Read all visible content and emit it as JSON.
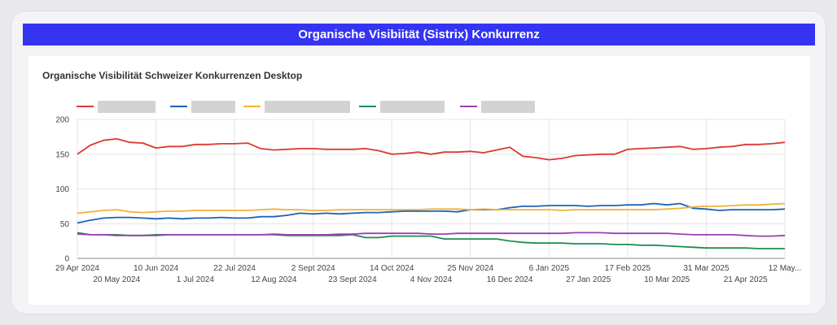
{
  "banner": {
    "title": "Organische Visibiität (Sistrix) Konkurrenz"
  },
  "panel": {
    "title": "Organische Visibilität Schweizer Konkurrenzen Desktop"
  },
  "chart_data": {
    "type": "line",
    "title": "Organische Visibilität Schweizer Konkurrenzen Desktop",
    "xlabel": "",
    "ylabel": "",
    "ylim": [
      0,
      200
    ],
    "yticks": [
      0,
      50,
      100,
      150,
      200
    ],
    "grid": true,
    "legend_position": "top-left",
    "legend_labels_redacted": true,
    "x": [
      "2024-04-29",
      "2024-05-06",
      "2024-05-13",
      "2024-05-20",
      "2024-05-27",
      "2024-06-03",
      "2024-06-10",
      "2024-06-17",
      "2024-06-24",
      "2024-07-01",
      "2024-07-08",
      "2024-07-15",
      "2024-07-22",
      "2024-07-29",
      "2024-08-05",
      "2024-08-12",
      "2024-08-19",
      "2024-08-26",
      "2024-09-02",
      "2024-09-09",
      "2024-09-16",
      "2024-09-23",
      "2024-09-30",
      "2024-10-07",
      "2024-10-14",
      "2024-10-21",
      "2024-10-28",
      "2024-11-04",
      "2024-11-11",
      "2024-11-18",
      "2024-11-25",
      "2024-12-02",
      "2024-12-09",
      "2024-12-16",
      "2024-12-23",
      "2024-12-30",
      "2025-01-06",
      "2025-01-13",
      "2025-01-20",
      "2025-01-27",
      "2025-02-03",
      "2025-02-10",
      "2025-02-17",
      "2025-02-24",
      "2025-03-03",
      "2025-03-10",
      "2025-03-17",
      "2025-03-24",
      "2025-03-31",
      "2025-04-07",
      "2025-04-14",
      "2025-04-21",
      "2025-04-28",
      "2025-05-05",
      "2025-05-12"
    ],
    "x_ticks_top": [
      "29 Apr 2024",
      "10 Jun 2024",
      "22 Jul 2024",
      "2 Sept 2024",
      "14 Oct 2024",
      "25 Nov 2024",
      "6 Jan 2025",
      "17 Feb 2025",
      "31 Mar 2025",
      "12 May..."
    ],
    "x_ticks_bottom": [
      "20 May 2024",
      "1 Jul 2024",
      "12 Aug 2024",
      "23 Sept 2024",
      "4 Nov 2024",
      "16 Dec 2024",
      "27 Jan 2025",
      "10 Mar 2025",
      "21 Apr 2025"
    ],
    "series": [
      {
        "color": "#d93a32",
        "values": [
          150,
          163,
          170,
          172,
          167,
          166,
          159,
          161,
          161,
          164,
          164,
          165,
          165,
          166,
          158,
          156,
          157,
          158,
          158,
          157,
          157,
          157,
          158,
          155,
          150,
          151,
          153,
          150,
          153,
          153,
          154,
          152,
          156,
          160,
          147,
          145,
          142,
          144,
          148,
          149,
          150,
          150,
          157,
          158,
          159,
          160,
          161,
          157,
          158,
          160,
          161,
          164,
          164,
          165,
          167
        ]
      },
      {
        "color": "#1a63b6",
        "values": [
          51,
          55,
          58,
          59,
          59,
          58,
          57,
          58,
          57,
          58,
          58,
          59,
          58,
          58,
          60,
          60,
          62,
          65,
          64,
          65,
          64,
          65,
          66,
          66,
          67,
          68,
          68,
          68,
          68,
          67,
          70,
          70,
          70,
          73,
          75,
          75,
          76,
          76,
          76,
          75,
          76,
          76,
          77,
          77,
          79,
          77,
          79,
          72,
          71,
          69,
          70,
          70,
          70,
          70,
          71
        ]
      },
      {
        "color": "#f2b13b",
        "values": [
          65,
          67,
          69,
          70,
          67,
          66,
          67,
          68,
          68,
          69,
          69,
          69,
          69,
          69,
          70,
          71,
          70,
          70,
          69,
          69,
          70,
          70,
          70,
          70,
          70,
          70,
          70,
          71,
          71,
          71,
          70,
          71,
          70,
          70,
          70,
          70,
          70,
          69,
          70,
          70,
          70,
          70,
          70,
          70,
          70,
          71,
          72,
          74,
          75,
          75,
          76,
          77,
          77,
          78,
          79
        ]
      },
      {
        "color": "#1e8d50",
        "values": [
          37,
          34,
          34,
          34,
          33,
          33,
          34,
          34,
          34,
          34,
          34,
          34,
          34,
          34,
          34,
          34,
          33,
          33,
          33,
          33,
          33,
          34,
          30,
          30,
          32,
          32,
          32,
          32,
          28,
          28,
          28,
          28,
          28,
          25,
          23,
          22,
          22,
          22,
          21,
          21,
          21,
          20,
          20,
          19,
          19,
          18,
          17,
          16,
          15,
          15,
          15,
          15,
          14,
          14,
          14
        ]
      },
      {
        "color": "#9a3fb5",
        "values": [
          35,
          34,
          34,
          33,
          33,
          33,
          33,
          34,
          34,
          34,
          34,
          34,
          34,
          34,
          34,
          35,
          34,
          34,
          34,
          34,
          35,
          35,
          36,
          36,
          36,
          36,
          36,
          35,
          35,
          36,
          36,
          36,
          36,
          36,
          36,
          36,
          36,
          36,
          37,
          37,
          37,
          36,
          36,
          36,
          36,
          36,
          35,
          34,
          34,
          34,
          34,
          33,
          32,
          32,
          33
        ]
      }
    ]
  }
}
